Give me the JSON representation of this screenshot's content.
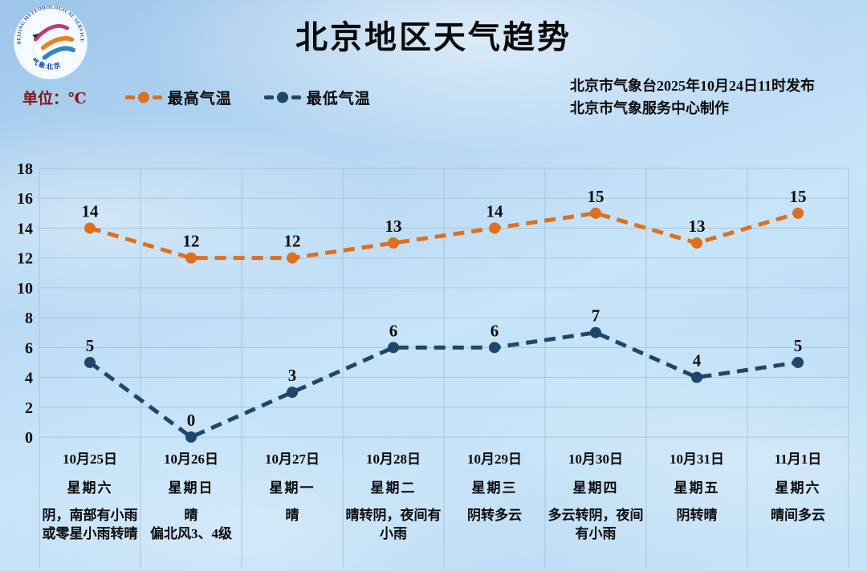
{
  "page": {
    "title": "北京地区天气趋势"
  },
  "header": {
    "logo": {
      "icon": "beijing-meteorological-service-logo",
      "top_text": "BEIJING METEOROLOGICAL SERVICE",
      "bottom_text": "气象北京"
    },
    "issued_line1": "北京市气象台2025年10月24日11时发布",
    "issued_line2": "北京市气象服务中心制作"
  },
  "legend": {
    "unit_label": "单位：℃",
    "items": [
      {
        "label": "最高气温",
        "color": "#DE6F1C"
      },
      {
        "label": "最低气温",
        "color": "#1F476B"
      }
    ]
  },
  "chart_data": {
    "type": "line",
    "title": "北京地区天气趋势",
    "categories": [
      "10月25日",
      "10月26日",
      "10月27日",
      "10月28日",
      "10月29日",
      "10月30日",
      "10月31日",
      "11月1日"
    ],
    "weekdays": [
      "星期六",
      "星期日",
      "星期一",
      "星期二",
      "星期三",
      "星期四",
      "星期五",
      "星期六"
    ],
    "weather": [
      "阴，南部有小雨或零星小雨转晴",
      "晴\n偏北风3、4级",
      "晴",
      "晴转阴，夜间有小雨",
      "阴转多云",
      "多云转阴，夜间有小雨",
      "阴转晴",
      "晴间多云"
    ],
    "series": [
      {
        "name": "最高气温",
        "color": "#DE6F1C",
        "values": [
          14,
          12,
          12,
          13,
          14,
          15,
          13,
          15
        ]
      },
      {
        "name": "最低气温",
        "color": "#1F476B",
        "values": [
          5,
          0,
          3,
          6,
          6,
          7,
          4,
          5
        ]
      }
    ],
    "ylabel": "℃",
    "ylim": [
      0,
      18
    ],
    "ytick_step": 2,
    "grid": true,
    "line_style": "dashed",
    "legend_position": "top-left"
  },
  "colors": {
    "grid": "#A4BACD",
    "axis_text": "#0d0d0d",
    "unit_text": "#8A1414",
    "logo_ring_text": "#1A4AA0",
    "logo_stripe_red": "#C03A70",
    "logo_stripe_orange": "#E8821E",
    "logo_stripe_blue": "#2E86C8"
  }
}
